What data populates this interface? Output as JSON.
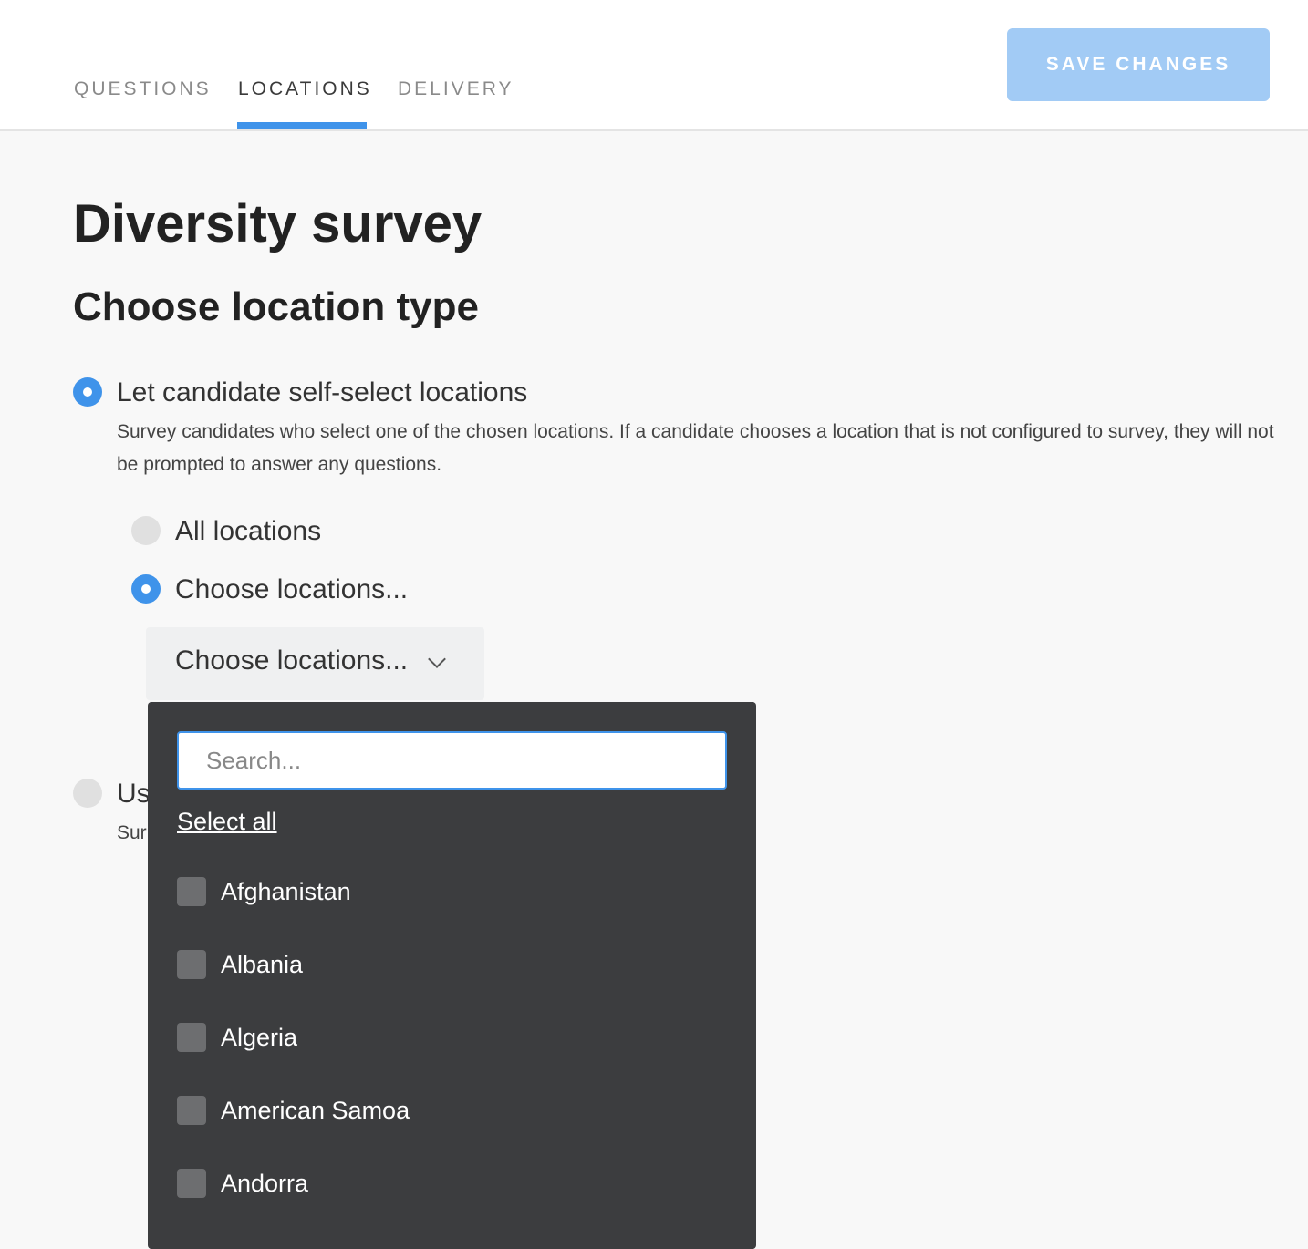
{
  "tabs": [
    {
      "label": "QUESTIONS"
    },
    {
      "label": "LOCATIONS",
      "active": true
    },
    {
      "label": "DELIVERY"
    }
  ],
  "save_label": "SAVE CHANGES",
  "title": "Diversity survey",
  "subtitle": "Choose location type",
  "option_self": {
    "label": "Let candidate self-select locations",
    "desc": "Survey candidates who select one of the chosen locations. If a candidate chooses a location that is not configured to survey, they will not be prompted to answer any questions.",
    "selected": true
  },
  "sub_all": {
    "label": "All locations",
    "selected": false
  },
  "sub_choose": {
    "label": "Choose locations...",
    "selected": true
  },
  "select": {
    "value": "Choose locations..."
  },
  "option_other": {
    "label": "Us",
    "desc": "Sur",
    "selected": false
  },
  "dropdown": {
    "search_placeholder": "Search...",
    "select_all": "Select all",
    "items": [
      "Afghanistan",
      "Albania",
      "Algeria",
      "American Samoa",
      "Andorra"
    ]
  },
  "colors": {
    "accent": "#3f93ea",
    "save_disabled": "#a2cbf5",
    "dropdown_bg": "#3c3d3f"
  }
}
